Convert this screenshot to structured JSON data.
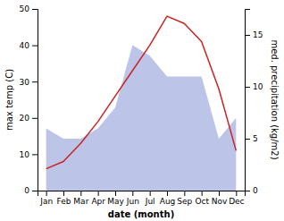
{
  "chart_data": {
    "type": "line",
    "xlabel": "date (month)",
    "ylabel": "max temp (C)",
    "y2label": "med. precipitation (kg/m2)",
    "categories": [
      "Jan",
      "Feb",
      "Mar",
      "Apr",
      "May",
      "Jun",
      "Jul",
      "Aug",
      "Sep",
      "Oct",
      "Nov",
      "Dec"
    ],
    "series": [
      {
        "type": "area",
        "axis": "y2",
        "color": "#bcc5e8",
        "values": [
          6,
          5,
          5,
          6,
          8,
          14,
          13,
          11,
          11,
          11,
          5,
          7
        ]
      },
      {
        "type": "line",
        "color": "#cc2222",
        "values": [
          6,
          8,
          13,
          19,
          26,
          33,
          40,
          48,
          46,
          41,
          28,
          11
        ]
      }
    ],
    "ylim": [
      0,
      50
    ],
    "yticks": [
      0,
      10,
      20,
      30,
      40,
      50
    ],
    "y2lim": [
      0,
      17.5
    ],
    "y2ticks": [
      0,
      5,
      10,
      15
    ]
  }
}
